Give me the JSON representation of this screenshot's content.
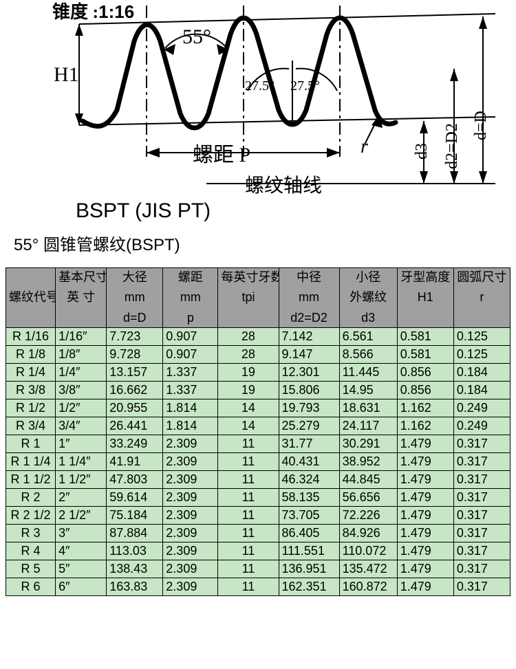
{
  "diagram": {
    "taper_label_prefix": "锥度 :",
    "taper_value": "1:16",
    "angle_label": "55°",
    "half_angle_left": "27.5°",
    "half_angle_right": "27.5°",
    "H1_label": "H1",
    "pitch_label": "螺距 P",
    "r_label": "r",
    "d3_label": "d3",
    "d2_label": "d2=D2",
    "d_label": "d=D",
    "axis_label": "螺纹轴线",
    "subtitle": "BSPT (JIS PT)",
    "stroke_color": "#000000",
    "thick_stroke": 7,
    "thin_stroke": 2
  },
  "title": "55° 圆锥管螺纹(BSPT)",
  "table": {
    "header_bg": "#a0a0a0",
    "row_bg": "#c6e6c6",
    "border_color": "#000000",
    "font_size": 18,
    "columns": [
      {
        "top": "螺纹代号",
        "mid": "",
        "bot": ""
      },
      {
        "top": "基本尺寸",
        "mid": "英 寸",
        "bot": ""
      },
      {
        "top": "大径",
        "mid": "mm",
        "bot": "d=D"
      },
      {
        "top": "螺距",
        "mid": "mm",
        "bot": "p"
      },
      {
        "top": "每英寸牙数",
        "mid": "tpi",
        "bot": ""
      },
      {
        "top": "中径",
        "mid": "mm",
        "bot": "d2=D2"
      },
      {
        "top": "小径",
        "mid": "外螺纹",
        "bot": "d3"
      },
      {
        "top": "牙型高度",
        "mid": "H1",
        "bot": ""
      },
      {
        "top": "圆弧尺寸",
        "mid": "r",
        "bot": ""
      }
    ],
    "rows": [
      [
        "R 1/16",
        "1/16″",
        "7.723",
        "0.907",
        "28",
        "7.142",
        "6.561",
        "0.581",
        "0.125"
      ],
      [
        "R 1/8",
        "1/8″",
        "9.728",
        "0.907",
        "28",
        "9.147",
        "8.566",
        "0.581",
        "0.125"
      ],
      [
        "R 1/4",
        "1/4″",
        "13.157",
        "1.337",
        "19",
        "12.301",
        "11.445",
        "0.856",
        "0.184"
      ],
      [
        "R 3/8",
        "3/8″",
        "16.662",
        "1.337",
        "19",
        "15.806",
        "14.95",
        "0.856",
        "0.184"
      ],
      [
        "R 1/2",
        "1/2″",
        "20.955",
        "1.814",
        "14",
        "19.793",
        "18.631",
        "1.162",
        "0.249"
      ],
      [
        "R 3/4",
        "3/4″",
        "26.441",
        "1.814",
        "14",
        "25.279",
        "24.117",
        "1.162",
        "0.249"
      ],
      [
        "R 1",
        "1″",
        "33.249",
        "2.309",
        "11",
        "31.77",
        "30.291",
        "1.479",
        "0.317"
      ],
      [
        "R 1 1/4",
        "1 1/4″",
        "41.91",
        "2.309",
        "11",
        "40.431",
        "38.952",
        "1.479",
        "0.317"
      ],
      [
        "R 1 1/2",
        "1 1/2″",
        "47.803",
        "2.309",
        "11",
        "46.324",
        "44.845",
        "1.479",
        "0.317"
      ],
      [
        "R 2",
        "2″",
        "59.614",
        "2.309",
        "11",
        "58.135",
        "56.656",
        "1.479",
        "0.317"
      ],
      [
        "R 2 1/2",
        "2 1/2″",
        "75.184",
        "2.309",
        "11",
        "73.705",
        "72.226",
        "1.479",
        "0.317"
      ],
      [
        "R 3",
        "3″",
        "87.884",
        "2.309",
        "11",
        "86.405",
        "84.926",
        "1.479",
        "0.317"
      ],
      [
        "R 4",
        "4″",
        "113.03",
        "2.309",
        "11",
        "111.551",
        "110.072",
        "1.479",
        "0.317"
      ],
      [
        "R 5",
        "5″",
        "138.43",
        "2.309",
        "11",
        "136.951",
        "135.472",
        "1.479",
        "0.317"
      ],
      [
        "R 6",
        "6″",
        "163.83",
        "2.309",
        "11",
        "162.351",
        "160.872",
        "1.479",
        "0.317"
      ]
    ]
  }
}
